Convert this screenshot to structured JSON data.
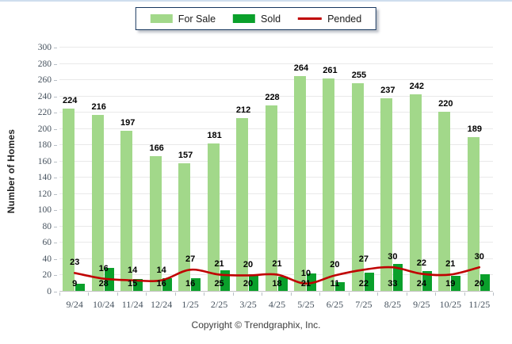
{
  "legend": {
    "items": [
      {
        "label": "For Sale",
        "color": "#a2d88a",
        "swatch": "bar"
      },
      {
        "label": "Sold",
        "color": "#0aa02b",
        "swatch": "bar"
      },
      {
        "label": "Pended",
        "color": "#c00000",
        "swatch": "line"
      }
    ]
  },
  "y_axis_title": "Number of Homes",
  "footer": {
    "copyright": "Copyright © Trendgraphix, Inc."
  },
  "colors": {
    "for_sale": "#a2d88a",
    "sold": "#0aa02b",
    "pended": "#c00000",
    "gridline": "#e9e9e9",
    "tick_text": "#46525e",
    "legend_border": "#17375e"
  },
  "chart_data": {
    "type": "bar",
    "categories": [
      "9/24",
      "10/24",
      "11/24",
      "12/24",
      "1/25",
      "2/25",
      "3/25",
      "4/25",
      "5/25",
      "6/25",
      "7/25",
      "8/25",
      "9/25",
      "10/25",
      "11/25"
    ],
    "series": [
      {
        "name": "For Sale",
        "type": "bar",
        "color": "#a2d88a",
        "values": [
          224,
          216,
          197,
          166,
          157,
          181,
          212,
          228,
          264,
          261,
          255,
          237,
          242,
          220,
          189
        ]
      },
      {
        "name": "Sold",
        "type": "bar",
        "color": "#0aa02b",
        "values": [
          9,
          28,
          15,
          16,
          16,
          25,
          20,
          18,
          21,
          11,
          22,
          33,
          24,
          19,
          20
        ]
      },
      {
        "name": "Pended",
        "type": "line",
        "color": "#c00000",
        "values": [
          23,
          16,
          14,
          14,
          27,
          21,
          20,
          21,
          10,
          20,
          27,
          30,
          22,
          21,
          30
        ]
      }
    ],
    "title": "",
    "xlabel": "",
    "ylabel": "Number of Homes",
    "ylim": [
      0,
      300
    ],
    "ytick_step": 20,
    "yticks": [
      0,
      20,
      40,
      60,
      80,
      100,
      120,
      140,
      160,
      180,
      200,
      220,
      240,
      260,
      280,
      300
    ],
    "grid": true,
    "legend_position": "top-center",
    "data_labels": true
  }
}
